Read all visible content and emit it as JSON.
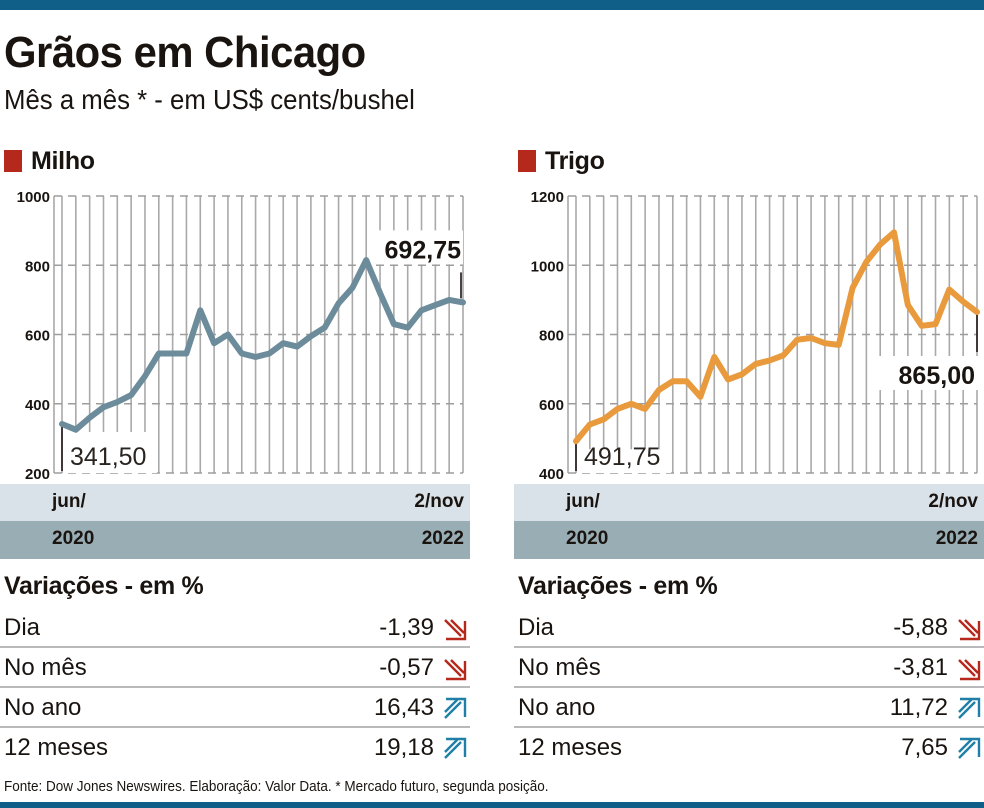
{
  "header": {
    "title": "Grãos em Chicago",
    "subtitle": "Mês a mês * - em US$ cents/bushel"
  },
  "colors": {
    "top_bar": "#0f5f88",
    "panel_marker": "#b5281c",
    "milho_line": "#6c8c9b",
    "trigo_line": "#e89a3c",
    "down_arrow": "#b5281c",
    "up_arrow": "#1f7fa6",
    "band_light": "#d9e2e8",
    "band_dark": "#99adb5"
  },
  "panels": [
    {
      "label": "Milho",
      "x_band": {
        "top_left": "jun/",
        "top_right": "2/nov",
        "bottom_left": "2020",
        "bottom_right": "2022"
      },
      "variations_title": "Variações - em %",
      "variations": [
        {
          "label": "Dia",
          "value": "-1,39",
          "direction": "down"
        },
        {
          "label": "No mês",
          "value": "-0,57",
          "direction": "down"
        },
        {
          "label": "No ano",
          "value": "16,43",
          "direction": "up"
        },
        {
          "label": "12 meses",
          "value": "19,18",
          "direction": "up"
        }
      ]
    },
    {
      "label": "Trigo",
      "x_band": {
        "top_left": "jun/",
        "top_right": "2/nov",
        "bottom_left": "2020",
        "bottom_right": "2022"
      },
      "variations_title": "Variações - em %",
      "variations": [
        {
          "label": "Dia",
          "value": "-5,88",
          "direction": "down"
        },
        {
          "label": "No mês",
          "value": "-3,81",
          "direction": "down"
        },
        {
          "label": "No ano",
          "value": "11,72",
          "direction": "up"
        },
        {
          "label": "12 meses",
          "value": "7,65",
          "direction": "up"
        }
      ]
    }
  ],
  "chart_data": [
    {
      "type": "line",
      "title": "Milho",
      "xlabel": "",
      "ylabel": "US$ cents/bushel",
      "x_start": "jun/2020",
      "x_end": "2/nov/2022",
      "ylim": [
        200,
        1000
      ],
      "yticks": [
        200,
        400,
        600,
        800,
        1000
      ],
      "ytick_labels": [
        "200",
        "400",
        "600",
        "800",
        "1000"
      ],
      "grid": true,
      "color": "#6c8c9b",
      "values": [
        341.5,
        325,
        360,
        390,
        405,
        425,
        480,
        545,
        545,
        545,
        670,
        575,
        600,
        545,
        535,
        545,
        575,
        565,
        595,
        620,
        690,
        735,
        815,
        720,
        630,
        620,
        670,
        685,
        700,
        692.75
      ],
      "annotations": [
        {
          "label": "341,50",
          "point": "first",
          "placement": "below"
        },
        {
          "label": "692,75",
          "point": "last",
          "placement": "above"
        }
      ]
    },
    {
      "type": "line",
      "title": "Trigo",
      "xlabel": "",
      "ylabel": "US$ cents/bushel",
      "x_start": "jun/2020",
      "x_end": "2/nov/2022",
      "ylim": [
        400,
        1200
      ],
      "yticks": [
        400,
        600,
        800,
        1000,
        1200
      ],
      "ytick_labels": [
        "400",
        "600",
        "800",
        "1000",
        "1200"
      ],
      "grid": true,
      "color": "#e89a3c",
      "values": [
        491.75,
        540,
        555,
        585,
        600,
        585,
        640,
        665,
        665,
        620,
        735,
        670,
        685,
        715,
        725,
        740,
        785,
        790,
        775,
        770,
        935,
        1010,
        1060,
        1095,
        885,
        825,
        830,
        930,
        895,
        865
      ],
      "annotations": [
        {
          "label": "491,75",
          "point": "first",
          "placement": "below"
        },
        {
          "label": "865,00",
          "point": "last",
          "placement": "below"
        }
      ]
    }
  ],
  "footer": "Fonte: Dow Jones Newswires. Elaboração: Valor Data. * Mercado futuro, segunda posição."
}
